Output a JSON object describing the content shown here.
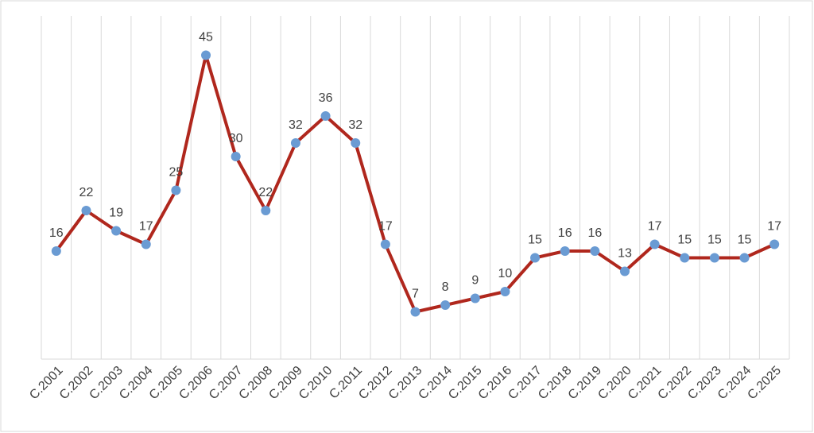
{
  "chart_data": {
    "type": "line",
    "categories": [
      "C.2001",
      "C.2002",
      "C.2003",
      "C.2004",
      "C.2005",
      "C.2006",
      "C.2007",
      "C.2008",
      "C.2009",
      "C.2010",
      "C.2011",
      "C.2012",
      "C.2013",
      "C.2014",
      "C.2015",
      "C.2016",
      "C.2017",
      "C.2018",
      "C.2019",
      "C.2020",
      "C.2021",
      "C.2022",
      "C.2023",
      "C.2024",
      "C.2025"
    ],
    "values": [
      16,
      22,
      19,
      17,
      25,
      45,
      30,
      22,
      32,
      36,
      32,
      17,
      7,
      8,
      9,
      10,
      15,
      16,
      16,
      13,
      17,
      15,
      15,
      15,
      17
    ],
    "color": "#b0271d",
    "marker_color": "#6a9bd3",
    "ylim": [
      0,
      50
    ],
    "grid": true
  }
}
